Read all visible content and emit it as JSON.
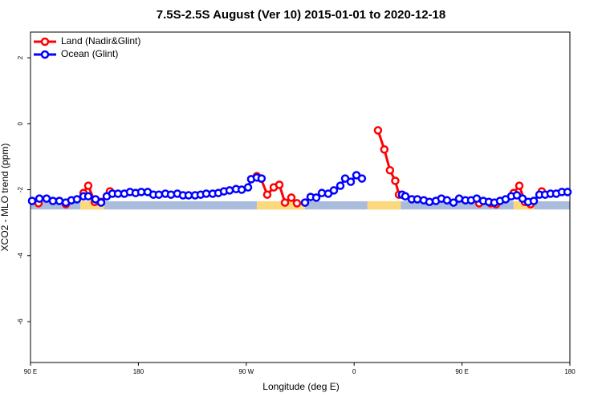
{
  "chart_data": {
    "type": "line",
    "title": "7.5S-2.5S August (Ver 10)   2015-01-01 to 2020-12-18",
    "xlabel": "Longitude (deg E)",
    "ylabel": "XCO2 - MLO trend (ppm)",
    "xlim": [
      90,
      540
    ],
    "ylim": [
      -7.24,
      2.78
    ],
    "xticks": [
      {
        "value": 90,
        "label": "90 E"
      },
      {
        "value": 180,
        "label": "180"
      },
      {
        "value": 270,
        "label": "90 W"
      },
      {
        "value": 360,
        "label": "0"
      },
      {
        "value": 450,
        "label": "90 E"
      },
      {
        "value": 540,
        "label": "180"
      }
    ],
    "yticks": [
      2,
      0,
      -2,
      -4,
      -6
    ],
    "legend": "top-left",
    "band": {
      "ylim": [
        -2.6,
        -2.35
      ],
      "color": "#a9bcdc",
      "land_color": "#fcd97c",
      "land": [
        [
          131.5,
          151.6
        ],
        [
          278.8,
          319
        ],
        [
          371,
          399
        ],
        [
          493,
          510
        ]
      ]
    },
    "series": [
      {
        "name": "Land (Nadir&Glint)",
        "color": "#ff0000",
        "x": [
          96.7,
          null,
          119.5,
          null,
          134.2,
          138.2,
          143.6,
          148.9,
          156.3,
          null,
          278.8,
          282.2,
          287.5,
          292.9,
          297.6,
          302.3,
          307.6,
          312.3,
          null,
          379.9,
          385.2,
          389.9,
          394.3,
          397.4,
          null,
          464.3,
          473.7,
          478.4,
          null,
          493.1,
          497.8,
          502.5,
          507.2,
          null,
          516.5
        ],
        "values": [
          -2.41,
          null,
          -2.44,
          null,
          -2.1,
          -1.88,
          -2.37,
          -2.37,
          -2.05,
          null,
          -1.59,
          -1.66,
          -2.15,
          -1.93,
          -1.85,
          -2.39,
          -2.24,
          -2.41,
          null,
          -0.2,
          -0.78,
          -1.41,
          -1.73,
          -2.15,
          null,
          -2.41,
          -2.41,
          -2.44,
          null,
          -2.1,
          -1.88,
          -2.37,
          -2.44,
          null,
          -2.05
        ]
      },
      {
        "name": "Ocean (Glint)",
        "color": "#0000ff",
        "x": [
          91.3,
          97.4,
          103.4,
          108.7,
          114.1,
          119.5,
          124.1,
          128.8,
          134.2,
          138.2,
          144.2,
          148.9,
          153.6,
          158.3,
          163.0,
          168.3,
          173.0,
          177.7,
          182.4,
          187.8,
          192.5,
          197.1,
          202.5,
          207.2,
          212.5,
          217.2,
          221.9,
          227.3,
          232.0,
          236.6,
          242.0,
          246.7,
          251.4,
          256.1,
          261.5,
          266.2,
          271.5,
          274.1,
          278.8,
          282.8,
          null,
          319.0,
          323.7,
          328.4,
          333.1,
          338.4,
          343.1,
          348.5,
          352.5,
          357.2,
          361.9,
          366.5,
          null,
          400.0,
          402.7,
          408.1,
          412.7,
          418.1,
          422.8,
          428.2,
          432.8,
          437.5,
          442.9,
          447.6,
          452.9,
          457.6,
          462.3,
          467.7,
          472.4,
          477.0,
          481.7,
          486.4,
          491.1,
          495.8,
          500.5,
          505.2,
          509.9,
          514.6,
          519.3,
          523.9,
          528.6,
          533.3,
          538.0
        ],
        "values": [
          -2.34,
          -2.27,
          -2.27,
          -2.34,
          -2.34,
          -2.39,
          -2.32,
          -2.29,
          -2.2,
          -2.2,
          -2.29,
          -2.39,
          -2.2,
          -2.12,
          -2.12,
          -2.12,
          -2.07,
          -2.1,
          -2.07,
          -2.07,
          -2.15,
          -2.15,
          -2.12,
          -2.15,
          -2.12,
          -2.17,
          -2.17,
          -2.17,
          -2.15,
          -2.12,
          -2.12,
          -2.1,
          -2.05,
          -2.02,
          -1.98,
          -2.0,
          -1.93,
          -1.68,
          -1.63,
          -1.66,
          null,
          -2.39,
          -2.22,
          -2.24,
          -2.1,
          -2.12,
          -2.02,
          -1.88,
          -1.66,
          -1.76,
          -1.56,
          -1.66,
          null,
          -2.15,
          -2.2,
          -2.29,
          -2.29,
          -2.32,
          -2.37,
          -2.34,
          -2.27,
          -2.32,
          -2.39,
          -2.27,
          -2.32,
          -2.32,
          -2.27,
          -2.34,
          -2.37,
          -2.39,
          -2.34,
          -2.29,
          -2.2,
          -2.17,
          -2.27,
          -2.37,
          -2.34,
          -2.15,
          -2.15,
          -2.12,
          -2.12,
          -2.07,
          -2.07
        ]
      }
    ]
  }
}
